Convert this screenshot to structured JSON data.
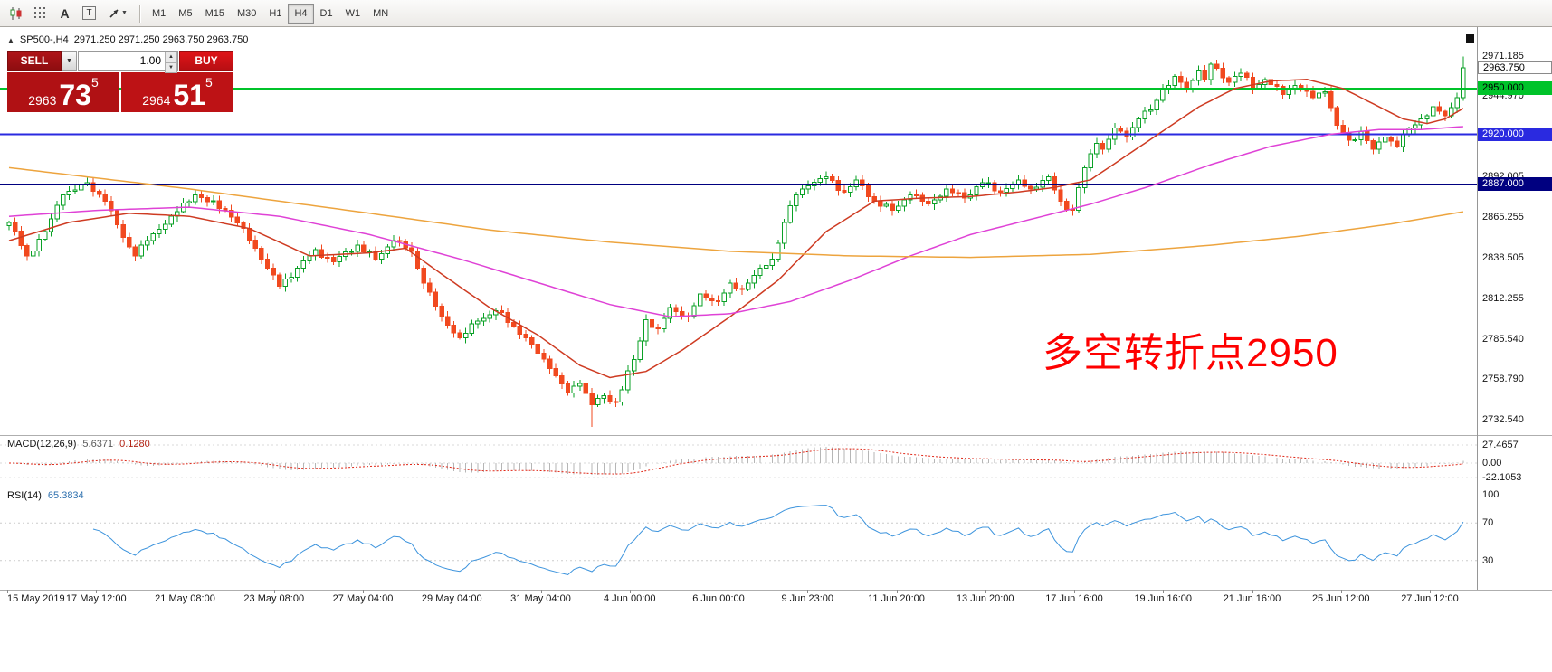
{
  "toolbar": {
    "icon_names": [
      "candlestick-chart-icon",
      "grid-icon",
      "font-icon",
      "text-box-icon",
      "arrow-tool-icon"
    ],
    "glyphs": {
      "font_a": "A",
      "text_t": "T"
    },
    "timeframes": [
      "M1",
      "M5",
      "M15",
      "M30",
      "H1",
      "H4",
      "D1",
      "W1",
      "MN"
    ],
    "active_timeframe": "H4"
  },
  "icons": {
    "caret_down": "▼",
    "spin_up": "▲",
    "spin_down": "▼",
    "collapse_triangle": "▲"
  },
  "chart_header": {
    "symbol_period": "SP500-,H4",
    "ohlc": "2971.250 2971.250 2963.750 2963.750"
  },
  "trade_panel": {
    "sell_label": "SELL",
    "buy_label": "BUY",
    "volume": "1.00",
    "bid": {
      "prefix": "2963",
      "digits": "73",
      "sup": "5"
    },
    "ask": {
      "prefix": "2964",
      "digits": "51",
      "sup": "5"
    }
  },
  "annotation": {
    "text": "多空转折点2950",
    "color": "#fe0000"
  },
  "price_axis": {
    "labels": [
      {
        "text": "2971.185",
        "value": 2971.185
      },
      {
        "text": "2944.970",
        "value": 2944.97
      },
      {
        "text": "2892.005",
        "value": 2892.005
      },
      {
        "text": "2865.255",
        "value": 2865.255
      },
      {
        "text": "2838.505",
        "value": 2838.505
      },
      {
        "text": "2812.255",
        "value": 2812.255
      },
      {
        "text": "2785.540",
        "value": 2785.54
      },
      {
        "text": "2758.790",
        "value": 2758.79
      },
      {
        "text": "2732.540",
        "value": 2732.54
      }
    ]
  },
  "levels": [
    {
      "label": "2950.000",
      "value": 2950,
      "color": "#00c32a",
      "text_color": "#000000",
      "width": 2
    },
    {
      "label": "2920.000",
      "value": 2920,
      "color": "#2a2ae0",
      "text_color": "#ffffff",
      "width": 2
    },
    {
      "label": "2887.000",
      "value": 2887,
      "color": "#000080",
      "text_color": "#ffffff",
      "width": 2
    }
  ],
  "last_price": {
    "label": "2963.750",
    "value": 2963.75
  },
  "indicators": {
    "macd": {
      "label": "MACD(12,26,9)",
      "value": "5.6371",
      "signal": "0.1280",
      "fast": 12,
      "slow": 26,
      "signal_period": 9,
      "axis": [
        {
          "text": "27.4657",
          "v": 27.4657
        },
        {
          "text": "0.00",
          "v": 0
        },
        {
          "text": "-22.1053",
          "v": -22.1053
        }
      ],
      "hist_color": "#b6b6b6",
      "signal_color": "#e02818"
    },
    "rsi": {
      "label": "RSI(14)",
      "value": "65.3834",
      "period": 14,
      "axis": [
        {
          "text": "100",
          "v": 100
        },
        {
          "text": "70",
          "v": 70
        },
        {
          "text": "30",
          "v": 30
        }
      ],
      "levels": [
        70,
        30
      ],
      "line_color": "#3d94dd"
    }
  },
  "time_axis": {
    "labels": [
      "15 May 2019",
      "17 May 12:00",
      "21 May 08:00",
      "23 May 08:00",
      "27 May 04:00",
      "29 May 04:00",
      "31 May 04:00",
      "4 Jun 00:00",
      "6 Jun 00:00",
      "9 Jun 23:00",
      "11 Jun 20:00",
      "13 Jun 20:00",
      "17 Jun 16:00",
      "19 Jun 16:00",
      "21 Jun 16:00",
      "25 Jun 12:00",
      "27 Jun 12:00"
    ]
  },
  "chart_data": {
    "type": "candlestick",
    "symbol": "SP500-",
    "period": "H4",
    "n": 243,
    "y_range": [
      2724,
      2988
    ],
    "up_color": "#0aa126",
    "down_color": "#f1491f",
    "close_waypoints": [
      [
        0,
        2862
      ],
      [
        3,
        2840
      ],
      [
        6,
        2856
      ],
      [
        9,
        2880
      ],
      [
        13,
        2888
      ],
      [
        16,
        2876
      ],
      [
        19,
        2852
      ],
      [
        21,
        2840
      ],
      [
        23,
        2850
      ],
      [
        27,
        2866
      ],
      [
        31,
        2880
      ],
      [
        36,
        2870
      ],
      [
        39,
        2858
      ],
      [
        42,
        2838
      ],
      [
        45,
        2820
      ],
      [
        48,
        2832
      ],
      [
        51,
        2844
      ],
      [
        54,
        2836
      ],
      [
        58,
        2847
      ],
      [
        61,
        2838
      ],
      [
        64,
        2850
      ],
      [
        67,
        2843
      ],
      [
        69,
        2822
      ],
      [
        72,
        2800
      ],
      [
        75,
        2786
      ],
      [
        78,
        2797
      ],
      [
        81,
        2804
      ],
      [
        84,
        2794
      ],
      [
        87,
        2782
      ],
      [
        90,
        2766
      ],
      [
        93,
        2750
      ],
      [
        95,
        2756
      ],
      [
        97,
        2742
      ],
      [
        99,
        2748
      ],
      [
        101,
        2744
      ],
      [
        104,
        2772
      ],
      [
        106,
        2798
      ],
      [
        108,
        2792
      ],
      [
        110,
        2806
      ],
      [
        113,
        2800
      ],
      [
        115,
        2815
      ],
      [
        118,
        2810
      ],
      [
        120,
        2822
      ],
      [
        122,
        2818
      ],
      [
        125,
        2832
      ],
      [
        127,
        2838
      ],
      [
        129,
        2862
      ],
      [
        131,
        2880
      ],
      [
        133,
        2886
      ],
      [
        136,
        2892
      ],
      [
        139,
        2882
      ],
      [
        141,
        2890
      ],
      [
        144,
        2876
      ],
      [
        147,
        2870
      ],
      [
        150,
        2880
      ],
      [
        153,
        2874
      ],
      [
        156,
        2884
      ],
      [
        159,
        2878
      ],
      [
        162,
        2888
      ],
      [
        165,
        2882
      ],
      [
        168,
        2890
      ],
      [
        170,
        2884
      ],
      [
        173,
        2892
      ],
      [
        175,
        2876
      ],
      [
        177,
        2870
      ],
      [
        179,
        2898
      ],
      [
        181,
        2914
      ],
      [
        182,
        2910
      ],
      [
        184,
        2924
      ],
      [
        186,
        2918
      ],
      [
        188,
        2930
      ],
      [
        190,
        2936
      ],
      [
        192,
        2950
      ],
      [
        194,
        2958
      ],
      [
        196,
        2950
      ],
      [
        198,
        2962
      ],
      [
        199,
        2956
      ],
      [
        200,
        2966
      ],
      [
        203,
        2954
      ],
      [
        205,
        2960
      ],
      [
        207,
        2950
      ],
      [
        209,
        2956
      ],
      [
        212,
        2946
      ],
      [
        214,
        2952
      ],
      [
        217,
        2944
      ],
      [
        219,
        2948
      ],
      [
        221,
        2926
      ],
      [
        223,
        2916
      ],
      [
        225,
        2922
      ],
      [
        227,
        2910
      ],
      [
        229,
        2918
      ],
      [
        231,
        2912
      ],
      [
        233,
        2924
      ],
      [
        235,
        2930
      ],
      [
        237,
        2938
      ],
      [
        239,
        2932
      ],
      [
        241,
        2944
      ],
      [
        242,
        2963.75
      ]
    ],
    "wick_overrides": {
      "97": {
        "low": 2727.5
      },
      "242": {
        "high": 2971.2
      }
    },
    "ma_series": [
      {
        "name": "ma-fast",
        "color": "#ce3b22",
        "waypoints": [
          [
            0,
            2850
          ],
          [
            10,
            2862
          ],
          [
            20,
            2868
          ],
          [
            30,
            2866
          ],
          [
            40,
            2858
          ],
          [
            50,
            2840
          ],
          [
            60,
            2842
          ],
          [
            66,
            2845
          ],
          [
            72,
            2828
          ],
          [
            80,
            2806
          ],
          [
            88,
            2788
          ],
          [
            95,
            2768
          ],
          [
            100,
            2760
          ],
          [
            106,
            2764
          ],
          [
            112,
            2778
          ],
          [
            120,
            2800
          ],
          [
            128,
            2824
          ],
          [
            136,
            2856
          ],
          [
            144,
            2876
          ],
          [
            152,
            2878
          ],
          [
            160,
            2879
          ],
          [
            168,
            2882
          ],
          [
            174,
            2885
          ],
          [
            180,
            2890
          ],
          [
            186,
            2906
          ],
          [
            192,
            2922
          ],
          [
            198,
            2938
          ],
          [
            204,
            2950
          ],
          [
            210,
            2955
          ],
          [
            216,
            2956
          ],
          [
            222,
            2950
          ],
          [
            228,
            2938
          ],
          [
            232,
            2930
          ],
          [
            236,
            2927
          ],
          [
            239,
            2930
          ],
          [
            242,
            2937
          ]
        ]
      },
      {
        "name": "ma-mid",
        "color": "#df42d6",
        "waypoints": [
          [
            0,
            2866
          ],
          [
            15,
            2870
          ],
          [
            30,
            2872
          ],
          [
            45,
            2866
          ],
          [
            60,
            2854
          ],
          [
            75,
            2838
          ],
          [
            90,
            2820
          ],
          [
            100,
            2808
          ],
          [
            110,
            2800
          ],
          [
            120,
            2802
          ],
          [
            130,
            2810
          ],
          [
            140,
            2824
          ],
          [
            150,
            2840
          ],
          [
            160,
            2854
          ],
          [
            170,
            2864
          ],
          [
            180,
            2874
          ],
          [
            190,
            2886
          ],
          [
            200,
            2900
          ],
          [
            210,
            2912
          ],
          [
            220,
            2920
          ],
          [
            228,
            2923
          ],
          [
            235,
            2923
          ],
          [
            242,
            2925
          ]
        ]
      },
      {
        "name": "ma-slow",
        "color": "#eda43e",
        "waypoints": [
          [
            0,
            2898
          ],
          [
            15,
            2891
          ],
          [
            30,
            2884
          ],
          [
            45,
            2876
          ],
          [
            60,
            2868
          ],
          [
            80,
            2857
          ],
          [
            100,
            2849
          ],
          [
            120,
            2843
          ],
          [
            140,
            2840
          ],
          [
            160,
            2839
          ],
          [
            180,
            2841
          ],
          [
            200,
            2847
          ],
          [
            215,
            2853
          ],
          [
            230,
            2861
          ],
          [
            242,
            2869
          ]
        ]
      }
    ]
  }
}
